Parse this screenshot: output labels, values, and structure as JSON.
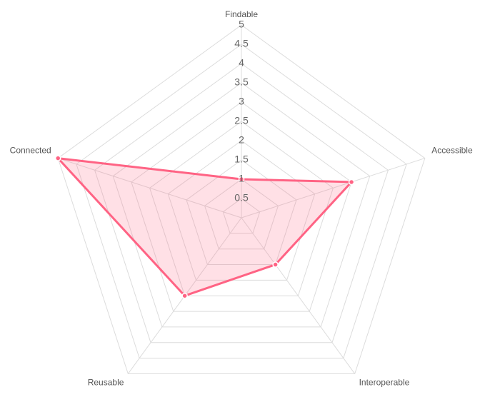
{
  "chart_data": {
    "type": "radar",
    "axes": [
      "Findable",
      "Accessible",
      "Interoperable",
      "Reusable",
      "Connected"
    ],
    "r_min": 0,
    "r_max": 5,
    "ticks": [
      "0.5",
      "1",
      "1.5",
      "2",
      "2.5",
      "3",
      "3.5",
      "4",
      "4.5",
      "5"
    ],
    "grid": true,
    "legend": "none",
    "series": [
      {
        "values": [
          1.0,
          3.0,
          1.5,
          2.5,
          5.0
        ]
      }
    ],
    "colors": {
      "line": "#ff6384",
      "fill": "rgba(255,99,132,0.2)",
      "grid": "#dcdcdc"
    }
  }
}
